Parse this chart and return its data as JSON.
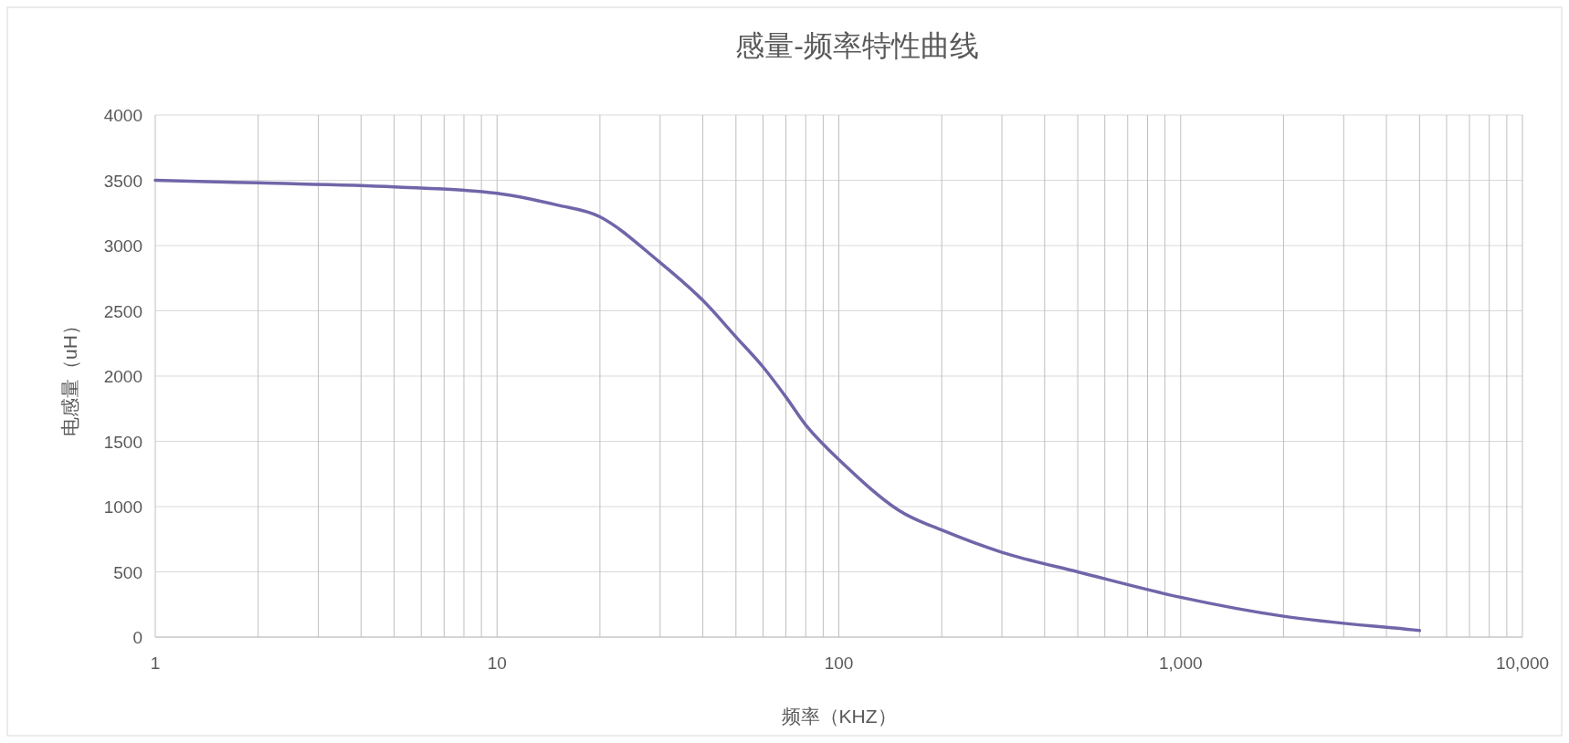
{
  "chart_data": {
    "type": "line",
    "title": "感量-频率特性曲线",
    "xlabel": "频率（KHZ）",
    "ylabel": "电感量（uH）",
    "log": "x",
    "grid": true,
    "x": [
      1,
      2,
      5,
      10,
      15,
      20,
      30,
      40,
      50,
      60,
      70,
      80,
      100,
      150,
      200,
      300,
      500,
      1000,
      2000,
      5000
    ],
    "series": [
      {
        "color": "#7165a9",
        "values": [
          3500,
          3480,
          3450,
          3400,
          3310,
          3220,
          2870,
          2580,
          2300,
          2070,
          1840,
          1625,
          1360,
          970,
          820,
          650,
          500,
          305,
          160,
          50
        ]
      }
    ],
    "xlim": [
      1,
      10000
    ],
    "xticks": [
      1,
      10,
      100,
      {
        "value": 1000,
        "label": "1,000"
      },
      {
        "value": 10000,
        "label": "10,000"
      }
    ],
    "ylim": [
      0,
      4000
    ],
    "yticks": [
      0,
      500,
      1000,
      1500,
      2000,
      2500,
      3000,
      3500,
      4000
    ]
  }
}
